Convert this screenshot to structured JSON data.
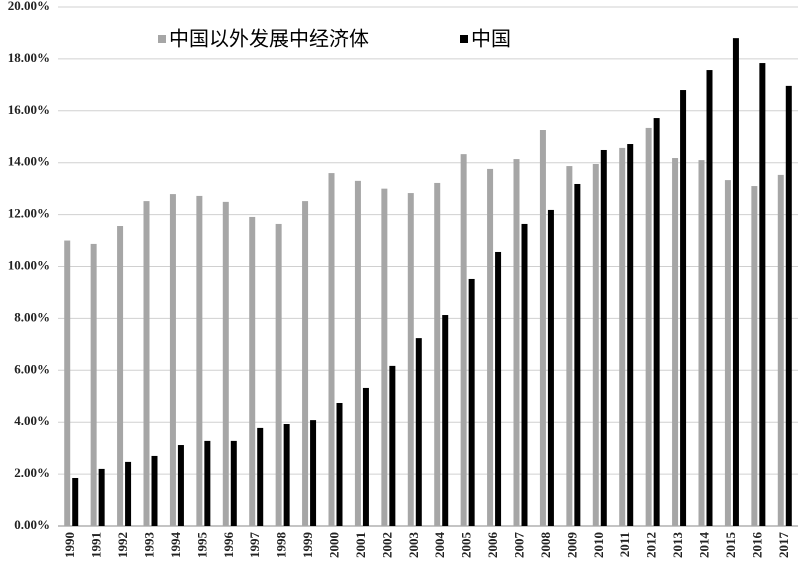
{
  "chart_data": {
    "type": "bar",
    "categories": [
      "1990",
      "1991",
      "1992",
      "1993",
      "1994",
      "1995",
      "1996",
      "1997",
      "1998",
      "1999",
      "2000",
      "2001",
      "2002",
      "2003",
      "2004",
      "2005",
      "2006",
      "2007",
      "2008",
      "2009",
      "2010",
      "2011",
      "2012",
      "2013",
      "2014",
      "2015",
      "2016",
      "2017"
    ],
    "series": [
      {
        "name": "中国以外发展中经济体",
        "color": "#a6a6a6",
        "values": [
          11.0,
          10.87,
          11.56,
          12.52,
          12.79,
          12.72,
          12.49,
          11.91,
          11.64,
          12.52,
          13.6,
          13.3,
          13.0,
          12.83,
          13.22,
          14.33,
          13.76,
          14.14,
          15.26,
          13.87,
          13.95,
          14.57,
          15.34,
          14.18,
          14.1,
          13.33,
          13.1,
          13.53
        ]
      },
      {
        "name": "中国",
        "color": "#000000",
        "values": [
          1.85,
          2.2,
          2.47,
          2.7,
          3.12,
          3.28,
          3.28,
          3.78,
          3.93,
          4.08,
          4.74,
          5.32,
          6.17,
          7.24,
          8.13,
          9.52,
          10.56,
          11.64,
          12.18,
          13.18,
          14.49,
          14.72,
          15.72,
          16.8,
          17.57,
          18.8,
          17.84,
          16.96
        ]
      }
    ],
    "ylim": [
      0,
      20
    ],
    "yticks": [
      {
        "value": 0,
        "label": "0.00%"
      },
      {
        "value": 2,
        "label": "2.00%"
      },
      {
        "value": 4,
        "label": "4.00%"
      },
      {
        "value": 6,
        "label": "6.00%"
      },
      {
        "value": 8,
        "label": "8.00%"
      },
      {
        "value": 10,
        "label": "10.00%"
      },
      {
        "value": 12,
        "label": "12.00%"
      },
      {
        "value": 14,
        "label": "14.00%"
      },
      {
        "value": 16,
        "label": "16.00%"
      },
      {
        "value": 18,
        "label": "18.00%"
      },
      {
        "value": 20,
        "label": "20.00%"
      }
    ],
    "grid": true,
    "legend": "top"
  }
}
